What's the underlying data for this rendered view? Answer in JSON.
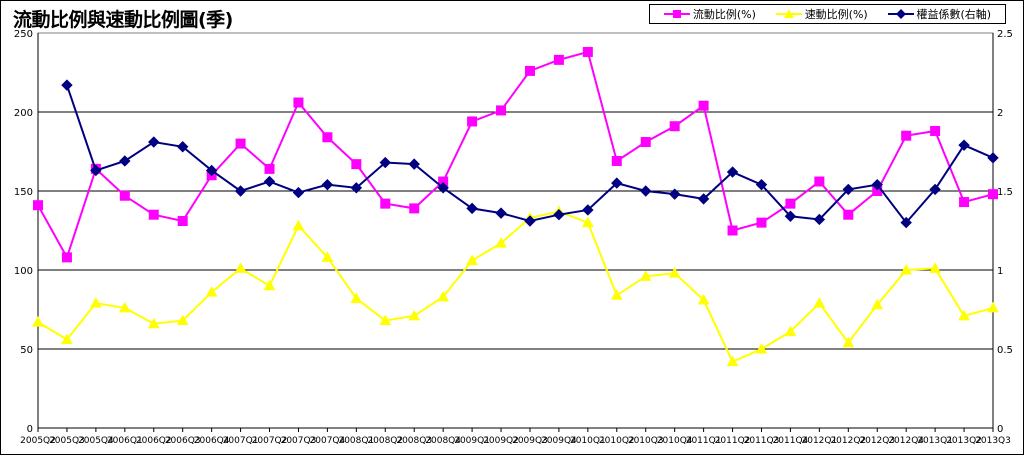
{
  "chart_data": {
    "type": "line",
    "title": "流動比例與速動比例圖(季)",
    "categories": [
      "2005Q2",
      "2005Q3",
      "2005Q4",
      "2006Q1",
      "2006Q2",
      "2006Q3",
      "2006Q4",
      "2007Q1",
      "2007Q2",
      "2007Q3",
      "2007Q4",
      "2008Q1",
      "2008Q2",
      "2008Q3",
      "2008Q4",
      "2009Q1",
      "2009Q2",
      "2009Q3",
      "2009Q4",
      "2010Q1",
      "2010Q2",
      "2010Q3",
      "2010Q4",
      "2011Q1",
      "2011Q2",
      "2011Q3",
      "2011Q4",
      "2012Q1",
      "2012Q2",
      "2012Q3",
      "2012Q4",
      "2013Q1",
      "2013Q2",
      "2013Q3"
    ],
    "y_left": {
      "min": 0,
      "max": 250,
      "ticks": [
        "0",
        "50",
        "100",
        "150",
        "200",
        "250"
      ]
    },
    "y_right": {
      "min": 0,
      "max": 2.5,
      "ticks": [
        "0",
        "0.5",
        "1",
        "1.5",
        "2",
        "2.5"
      ]
    },
    "gridlines": true,
    "legend_position": "top-right",
    "series": [
      {
        "name": "流動比例(%)",
        "axis": "left",
        "color": "#ff00ff",
        "marker": "square",
        "values": [
          141,
          108,
          164,
          147,
          135,
          131,
          160,
          180,
          164,
          206,
          184,
          167,
          142,
          139,
          156,
          194,
          201,
          226,
          233,
          238,
          169,
          181,
          191,
          204,
          125,
          130,
          142,
          156,
          135,
          150,
          185,
          188,
          143,
          148
        ]
      },
      {
        "name": "速動比例(%)",
        "axis": "left",
        "color": "#ffff00",
        "marker": "triangle",
        "values": [
          67,
          56,
          79,
          76,
          66,
          68,
          86,
          101,
          90,
          128,
          108,
          82,
          68,
          71,
          83,
          106,
          117,
          133,
          137,
          130,
          84,
          96,
          98,
          81,
          42,
          50,
          61,
          79,
          54,
          78,
          100,
          101,
          71,
          76
        ]
      },
      {
        "name": "權益係數(右軸)",
        "axis": "right",
        "color": "#000080",
        "marker": "diamond",
        "values": [
          null,
          2.17,
          1.63,
          1.69,
          1.81,
          1.78,
          1.63,
          1.5,
          1.56,
          1.49,
          1.54,
          1.52,
          1.68,
          1.67,
          1.52,
          1.39,
          1.36,
          1.31,
          1.35,
          1.38,
          1.55,
          1.5,
          1.48,
          1.45,
          1.62,
          1.54,
          1.34,
          1.32,
          1.51,
          1.54,
          1.3,
          1.51,
          1.79,
          1.71
        ]
      }
    ]
  }
}
